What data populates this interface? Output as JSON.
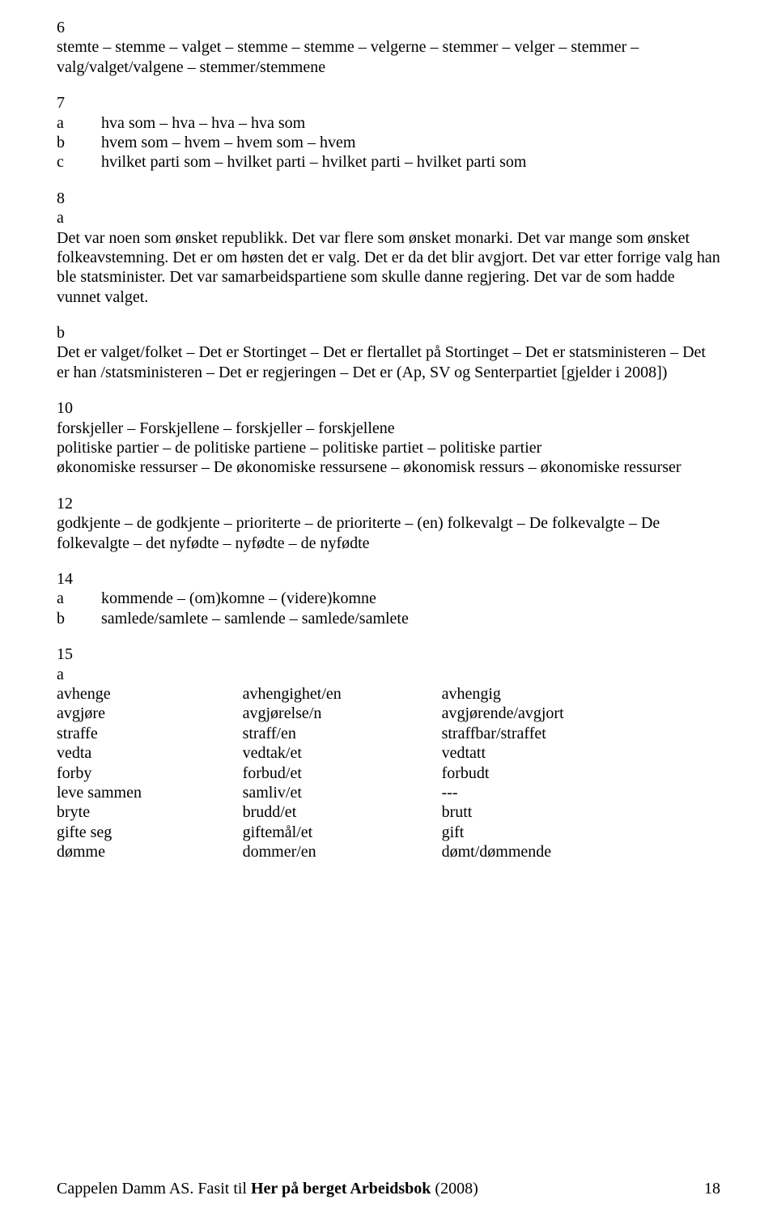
{
  "s6": {
    "num": "6",
    "text": "stemte – stemme – valget – stemme – stemme – velgerne – stemmer – velger – stemmer – valg/valget/valgene – stemmer/stemmene"
  },
  "s7": {
    "num": "7",
    "a_letter": "a",
    "a_text": "hva som – hva – hva – hva som",
    "b_letter": "b",
    "b_text": "hvem som – hvem – hvem som – hvem",
    "c_letter": "c",
    "c_text": "hvilket parti som – hvilket parti – hvilket parti – hvilket parti som"
  },
  "s8": {
    "num": "8",
    "a_letter": "a",
    "a_text": "Det var noen som ønsket republikk. Det var flere som ønsket monarki. Det var mange som ønsket folkeavstemning. Det er om høsten det er valg. Det er da det blir avgjort. Det var etter forrige valg han ble statsminister. Det var samarbeidspartiene som skulle danne regjering. Det var de som hadde vunnet valget.",
    "b_letter": "b",
    "b_text": "Det er valget/folket – Det er Stortinget – Det er flertallet på Stortinget – Det er statsministeren – Det er han /statsministeren – Det er regjeringen – Det er (Ap, SV og Senterpartiet [gjelder i 2008])"
  },
  "s10": {
    "num": "10",
    "l1": "forskjeller – Forskjellene – forskjeller – forskjellene",
    "l2": "politiske partier – de politiske partiene – politiske partiet – politiske partier",
    "l3": "økonomiske ressurser – De økonomiske ressursene – økonomisk ressurs – økonomiske ressurser"
  },
  "s12": {
    "num": "12",
    "text": "godkjente – de godkjente – prioriterte – de prioriterte – (en) folkevalgt – De folkevalgte – De folkevalgte – det nyfødte – nyfødte – de nyfødte"
  },
  "s14": {
    "num": "14",
    "a_letter": "a",
    "a_text": "kommende – (om)komne – (videre)komne",
    "b_letter": "b",
    "b_text": "samlede/samlete – samlende – samlede/samlete"
  },
  "s15": {
    "num": "15",
    "a_letter": "a",
    "rows": [
      {
        "c1": "avhenge",
        "c2": "avhengighet/en",
        "c3": "avhengig"
      },
      {
        "c1": "avgjøre",
        "c2": "avgjørelse/n",
        "c3": "avgjørende/avgjort"
      },
      {
        "c1": "straffe",
        "c2": "straff/en",
        "c3": "straffbar/straffet"
      },
      {
        "c1": "vedta",
        "c2": "vedtak/et",
        "c3": "vedtatt"
      },
      {
        "c1": "forby",
        "c2": "forbud/et",
        "c3": "forbudt"
      },
      {
        "c1": "leve sammen",
        "c2": "samliv/et",
        "c3": "---"
      },
      {
        "c1": "bryte",
        "c2": "brudd/et",
        "c3": "brutt"
      },
      {
        "c1": "gifte seg",
        "c2": "giftemål/et",
        "c3": "gift"
      },
      {
        "c1": "dømme",
        "c2": "dommer/en",
        "c3": "dømt/dømmende"
      }
    ]
  },
  "footer": {
    "left_pre": "Cappelen Damm AS. Fasit til ",
    "left_bold": "Her på berget Arbeidsbok",
    "left_post": " (2008)",
    "pagenum": "18"
  }
}
